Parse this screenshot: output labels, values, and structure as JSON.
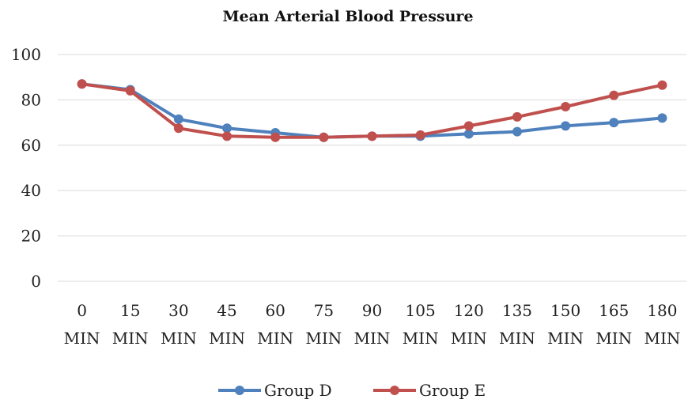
{
  "chart_data": {
    "type": "line",
    "title": "Mean Arterial Blood Pressure",
    "xlabel": "",
    "ylabel": "",
    "categories": [
      [
        "0",
        "MIN"
      ],
      [
        "15",
        "MIN"
      ],
      [
        "30",
        "MIN"
      ],
      [
        "45",
        "MIN"
      ],
      [
        "60",
        "MIN"
      ],
      [
        "75",
        "MIN"
      ],
      [
        "90",
        "MIN"
      ],
      [
        "105",
        "MIN"
      ],
      [
        "120",
        "MIN"
      ],
      [
        "135",
        "MIN"
      ],
      [
        "150",
        "MIN"
      ],
      [
        "165",
        "MIN"
      ],
      [
        "180",
        "MIN"
      ]
    ],
    "ylim": [
      0,
      100
    ],
    "yticks": [
      "0",
      "20",
      "40",
      "60",
      "80",
      "100"
    ],
    "grid": true,
    "legend_position": "bottom",
    "series": [
      {
        "name": "Group D",
        "color": "#4f81bd",
        "values": [
          87,
          84.5,
          71.5,
          67.5,
          65.5,
          63.5,
          64,
          64,
          65,
          66,
          68.5,
          70,
          72
        ]
      },
      {
        "name": "Group E",
        "color": "#c0504d",
        "values": [
          87,
          84,
          67.5,
          64,
          63.5,
          63.5,
          64,
          64.5,
          68.5,
          72.5,
          77,
          82,
          86.5
        ]
      }
    ]
  }
}
